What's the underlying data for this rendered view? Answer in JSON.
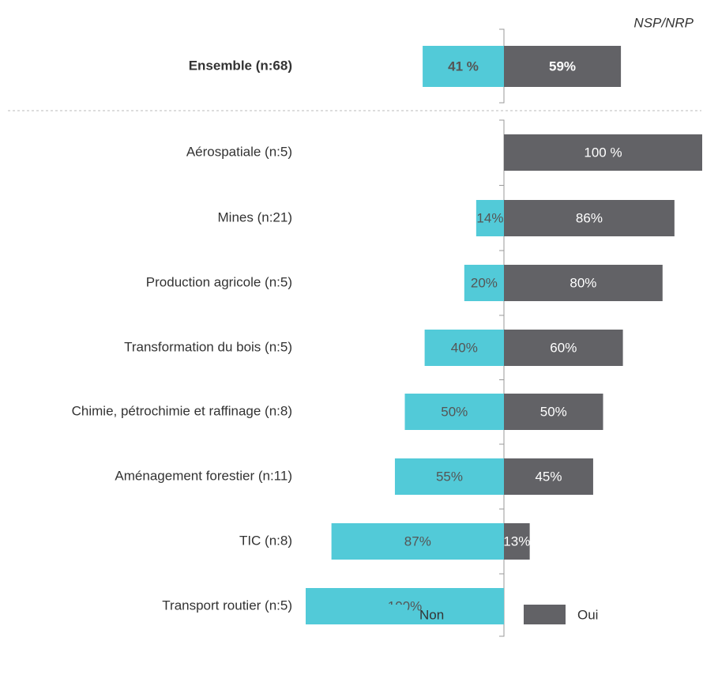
{
  "chart_data": {
    "type": "diverging_bar",
    "annotation": "NSP/NRP",
    "categories": [
      "Ensemble (n:68)",
      "Aérospatiale (n:5)",
      "Mines (n:21)",
      "Production agricole (n:5)",
      "Transformation du bois (n:5)",
      "Chimie, pétrochimie et raffinage (n:8)",
      "Aménagement forestier (n:11)",
      "TIC (n:8)",
      "Transport routier (n:5)"
    ],
    "series": [
      {
        "name": "Non",
        "color": "#52cad8",
        "values": [
          41,
          null,
          14,
          20,
          40,
          50,
          55,
          87,
          100
        ],
        "value_labels": [
          "41 %",
          null,
          "14%",
          "20%",
          "40%",
          "50%",
          "55%",
          "87%",
          "100%"
        ]
      },
      {
        "name": "Oui",
        "color": "#626266",
        "values": [
          59,
          100,
          86,
          80,
          60,
          50,
          45,
          13,
          null
        ],
        "value_labels": [
          "59%",
          "100 %",
          "86%",
          "80%",
          "60%",
          "50%",
          "45%",
          "13%",
          null
        ]
      }
    ]
  }
}
